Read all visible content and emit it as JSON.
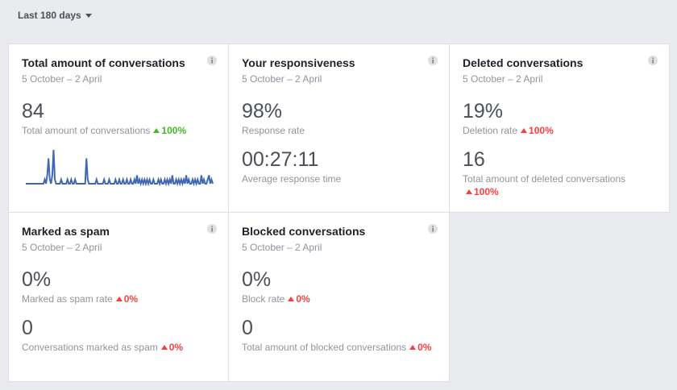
{
  "filter": "Last 180 days",
  "colors": {
    "up_good": "#42b72a",
    "up_bad": "#fa3e3e",
    "line": "#4267b2"
  },
  "cards": [
    {
      "title": "Total amount of conversations",
      "date": "5 October – 2 April",
      "metrics": [
        {
          "value": "84",
          "label": "Total amount of conversations",
          "change": "100%",
          "good": true
        }
      ],
      "sparkline": [
        0,
        0,
        0,
        0,
        0,
        0,
        0,
        0,
        0,
        0,
        0,
        0,
        0,
        0,
        0,
        1,
        0,
        2,
        6,
        1,
        0,
        2,
        8,
        1,
        0,
        0,
        0,
        0,
        1,
        0,
        0,
        0,
        0,
        1,
        0,
        0,
        1,
        0,
        0,
        1,
        0,
        0,
        0,
        0,
        0,
        0,
        0,
        0,
        6,
        1,
        0,
        0,
        0,
        0,
        0,
        0,
        1,
        0,
        0,
        0,
        0,
        0,
        1,
        0,
        0,
        0,
        1,
        0,
        0,
        0,
        0,
        1,
        0,
        0,
        1,
        0,
        0,
        1,
        0,
        0,
        1,
        0,
        0,
        1,
        0,
        0,
        1,
        0,
        2,
        0,
        1,
        0,
        1,
        0,
        1,
        0,
        1,
        0,
        1,
        0,
        0,
        1,
        0,
        0,
        0,
        1,
        0,
        1,
        0,
        0,
        1,
        0,
        1,
        0,
        1,
        0,
        2,
        0,
        0,
        1,
        0,
        1,
        0,
        1,
        0,
        1,
        0,
        2,
        0,
        1,
        0,
        0,
        1,
        0,
        1,
        0,
        1,
        0,
        0,
        2,
        0,
        1,
        0,
        0,
        1,
        2,
        0,
        1,
        0
      ]
    },
    {
      "title": "Your responsiveness",
      "date": "5 October – 2 April",
      "metrics": [
        {
          "value": "98%",
          "label": "Response rate"
        },
        {
          "value": "00:27:11",
          "label": "Average response time"
        }
      ]
    },
    {
      "title": "Deleted conversations",
      "date": "5 October – 2 April",
      "metrics": [
        {
          "value": "19%",
          "label": "Deletion rate",
          "change": "100%",
          "good": false
        },
        {
          "value": "16",
          "label": "Total amount of deleted conversations",
          "change": "100%",
          "good": false
        }
      ]
    },
    {
      "title": "Marked as spam",
      "date": "5 October – 2 April",
      "metrics": [
        {
          "value": "0%",
          "label": "Marked as spam rate",
          "change": "0%",
          "good": false
        },
        {
          "value": "0",
          "label": "Conversations marked as spam",
          "change": "0%",
          "good": false
        }
      ]
    },
    {
      "title": "Blocked conversations",
      "date": "5 October – 2 April",
      "metrics": [
        {
          "value": "0%",
          "label": "Block rate",
          "change": "0%",
          "good": false
        },
        {
          "value": "0",
          "label": "Total amount of blocked conversations",
          "change": "0%",
          "good": false
        }
      ]
    }
  ]
}
